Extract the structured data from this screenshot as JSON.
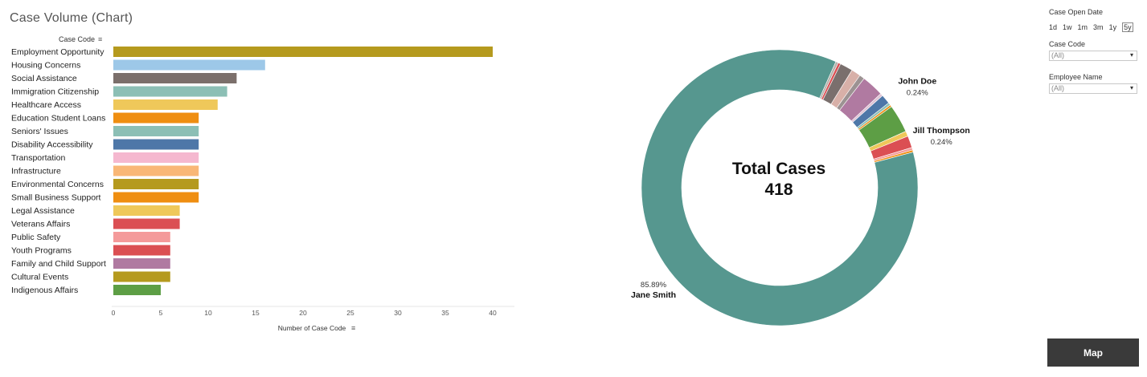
{
  "header": {
    "title": "Case Volume (Chart)"
  },
  "chart_data": [
    {
      "type": "bar",
      "orientation": "horizontal",
      "title": "Case Volume (Chart)",
      "row_header": "Case Code",
      "xlabel": "Number of Case Code",
      "xlim": [
        0,
        41
      ],
      "xticks": [
        0,
        5,
        10,
        15,
        20,
        25,
        30,
        35,
        40
      ],
      "categories": [
        "Employment Opportunity",
        "Housing Concerns",
        "Social Assistance",
        "Immigration Citizenship",
        "Healthcare Access",
        "Education Student Loans",
        "Seniors' Issues",
        "Disability Accessibility",
        "Transportation",
        "Infrastructure",
        "Environmental Concerns",
        "Small Business Support",
        "Legal Assistance",
        "Veterans Affairs",
        "Public Safety",
        "Youth Programs",
        "Family and Child Support",
        "Cultural Events",
        "Indigenous Affairs"
      ],
      "values": [
        40,
        16,
        13,
        12,
        11,
        9,
        9,
        9,
        9,
        9,
        9,
        9,
        7,
        7,
        6,
        6,
        6,
        6,
        5
      ],
      "colors": [
        "#b59a1e",
        "#9dc8e8",
        "#7b6f6b",
        "#8cbfb5",
        "#efc85a",
        "#ef8e11",
        "#8cbfb5",
        "#4e77a8",
        "#f5b8cf",
        "#f9b776",
        "#b59a1e",
        "#ef8e11",
        "#efc85a",
        "#db4f53",
        "#f49a9a",
        "#db4f53",
        "#b07aa1",
        "#b59a1e",
        "#5d9e45"
      ]
    },
    {
      "type": "pie",
      "variant": "donut",
      "center_title": "Total Cases",
      "center_value": "418",
      "slices": [
        {
          "name": "Jane Smith",
          "value": 85.89,
          "label": "85.89%",
          "color": "#56978f"
        },
        {
          "name": "",
          "value": 0.3,
          "color": "#b7b2ac"
        },
        {
          "name": "",
          "value": 0.3,
          "color": "#db4f53"
        },
        {
          "name": "",
          "value": 1.5,
          "color": "#7a6f6d"
        },
        {
          "name": "",
          "value": 1.1,
          "color": "#d8b0a8"
        },
        {
          "name": "",
          "value": 0.6,
          "color": "#9c9292"
        },
        {
          "name": "",
          "value": 2.6,
          "color": "#b07aa1"
        },
        {
          "name": "",
          "value": 0.3,
          "color": "#dfc1d3"
        },
        {
          "name": "",
          "value": 1.1,
          "color": "#4e77a8"
        },
        {
          "name": "",
          "value": 0.3,
          "color": "#8cbfb5"
        },
        {
          "name": "John Doe",
          "value": 0.24,
          "label": "0.24%",
          "color": "#ef8e11"
        },
        {
          "name": "",
          "value": 3.3,
          "color": "#5d9e45"
        },
        {
          "name": "",
          "value": 0.6,
          "color": "#efc85a"
        },
        {
          "name": "",
          "value": 1.4,
          "color": "#db4f53"
        },
        {
          "name": "",
          "value": 0.3,
          "color": "#f49a9a"
        },
        {
          "name": "Jill Thompson",
          "value": 0.24,
          "label": "0.24%",
          "color": "#ef8e11"
        }
      ]
    }
  ],
  "filters": {
    "date_label": "Case Open Date",
    "date_ranges": [
      "1d",
      "1w",
      "1m",
      "3m",
      "1y",
      "5y"
    ],
    "date_selected": "5y",
    "case_code_label": "Case Code",
    "case_code_value": "(All)",
    "employee_label": "Employee Name",
    "employee_value": "(All)"
  },
  "map_button": "Map",
  "icons": {
    "sort": "sort-icon",
    "dropdown": "dropdown-arrow-icon"
  }
}
